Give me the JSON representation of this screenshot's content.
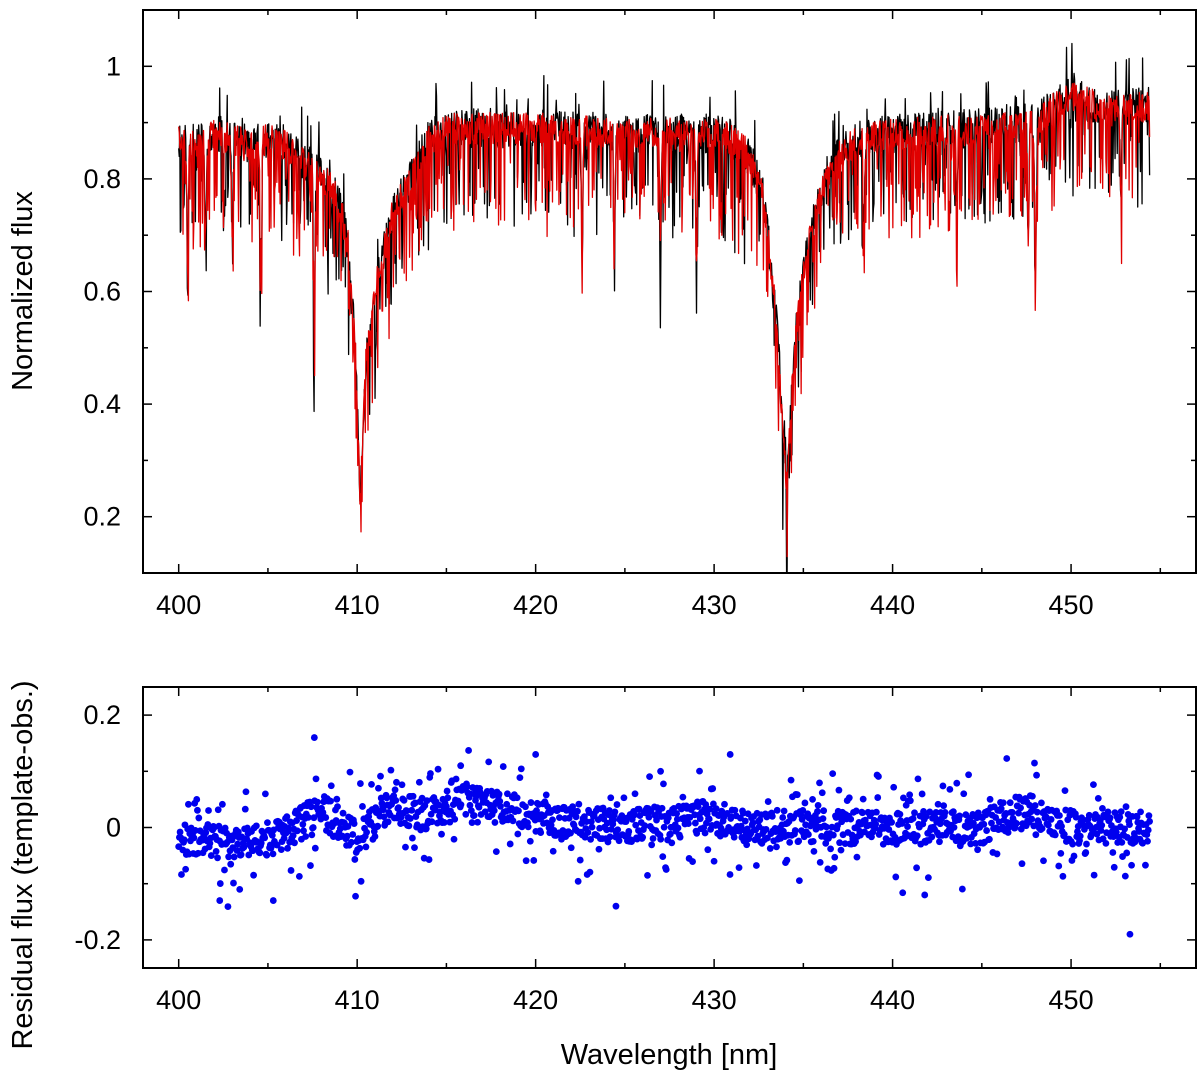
{
  "chart_data": [
    {
      "type": "line",
      "panel": "top",
      "ylabel": "Normalized flux",
      "xlabel": "",
      "xlim": [
        398,
        457
      ],
      "ylim": [
        0.1,
        1.1
      ],
      "x_ticks": [
        "400",
        "410",
        "420",
        "430",
        "440",
        "450"
      ],
      "y_ticks": [
        "0.2",
        "0.4",
        "0.6",
        "0.8",
        "1"
      ],
      "y_tick_values": [
        0.2,
        0.4,
        0.6,
        0.8,
        1.0
      ],
      "grid": false,
      "line_colors": {
        "observed": "#000000",
        "template": "#e00000"
      },
      "x_range": [
        400,
        454.4
      ],
      "continuum_points": [
        [
          400,
          0.87
        ],
        [
          401,
          0.86
        ],
        [
          402,
          0.88
        ],
        [
          403,
          0.87
        ],
        [
          404,
          0.86
        ],
        [
          405,
          0.87
        ],
        [
          406,
          0.86
        ],
        [
          407,
          0.83
        ],
        [
          408,
          0.81
        ],
        [
          409,
          0.76
        ],
        [
          409.5,
          0.68
        ],
        [
          409.9,
          0.5
        ],
        [
          410.17,
          0.23
        ],
        [
          410.5,
          0.48
        ],
        [
          411,
          0.6
        ],
        [
          411.5,
          0.67
        ],
        [
          412,
          0.74
        ],
        [
          413,
          0.8
        ],
        [
          414,
          0.87
        ],
        [
          415,
          0.89
        ],
        [
          418,
          0.89
        ],
        [
          420,
          0.89
        ],
        [
          425,
          0.88
        ],
        [
          430,
          0.88
        ],
        [
          431,
          0.87
        ],
        [
          432,
          0.84
        ],
        [
          432.8,
          0.76
        ],
        [
          433.5,
          0.55
        ],
        [
          434.05,
          0.25
        ],
        [
          434.5,
          0.5
        ],
        [
          435,
          0.64
        ],
        [
          436,
          0.78
        ],
        [
          437,
          0.84
        ],
        [
          438,
          0.87
        ],
        [
          440,
          0.88
        ],
        [
          445,
          0.89
        ],
        [
          448,
          0.9
        ],
        [
          450,
          0.95
        ],
        [
          452,
          0.92
        ],
        [
          454.4,
          0.93
        ]
      ],
      "deep_lines": [
        [
          400.5,
          0.64
        ],
        [
          401.5,
          0.7
        ],
        [
          403,
          0.69
        ],
        [
          404.6,
          0.64
        ],
        [
          407.6,
          0.53
        ],
        [
          422.6,
          0.66
        ],
        [
          424.4,
          0.68
        ],
        [
          427,
          0.68
        ],
        [
          429,
          0.67
        ],
        [
          438.4,
          0.7
        ],
        [
          443.6,
          0.73
        ],
        [
          447.6,
          0.68
        ],
        [
          448,
          0.65
        ],
        [
          452.8,
          0.77
        ]
      ],
      "series": [
        {
          "name": "",
          "color": "#000000",
          "noise": 0.035,
          "seed": 11
        },
        {
          "name": "",
          "color": "#e00000",
          "noise": 0.028,
          "seed": 29
        }
      ]
    },
    {
      "type": "scatter",
      "panel": "bottom",
      "ylabel": "Residual flux (template-obs.)",
      "xlabel": "Wavelength [nm]",
      "xlim": [
        398,
        457
      ],
      "ylim": [
        -0.25,
        0.25
      ],
      "x_ticks": [
        "400",
        "410",
        "420",
        "430",
        "440",
        "450"
      ],
      "y_ticks": [
        "-0.2",
        "0",
        "0.2"
      ],
      "y_tick_values": [
        -0.2,
        0.0,
        0.2
      ],
      "grid": false,
      "marker_color": "#0000ee",
      "x_range": [
        400,
        454.4
      ],
      "baseline_points": [
        [
          400,
          -0.02
        ],
        [
          404,
          -0.03
        ],
        [
          406,
          -0.01
        ],
        [
          408,
          0.03
        ],
        [
          410,
          -0.02
        ],
        [
          412,
          0.04
        ],
        [
          414,
          0.02
        ],
        [
          416,
          0.05
        ],
        [
          420,
          0.02
        ],
        [
          425,
          0.0
        ],
        [
          430,
          0.02
        ],
        [
          432,
          0.0
        ],
        [
          436,
          0.0
        ],
        [
          440,
          0.0
        ],
        [
          445,
          0.0
        ],
        [
          446,
          0.02
        ],
        [
          448,
          0.03
        ],
        [
          450,
          0.0
        ],
        [
          454.4,
          0.0
        ]
      ],
      "notable_points": [
        [
          407.6,
          0.16
        ],
        [
          430.9,
          0.13
        ],
        [
          402.3,
          -0.13
        ],
        [
          405.3,
          -0.13
        ],
        [
          424.5,
          -0.14
        ],
        [
          453.3,
          -0.19
        ],
        [
          415.8,
          0.11
        ],
        [
          420,
          0.13
        ],
        [
          427,
          0.1
        ],
        [
          441.8,
          -0.12
        ]
      ]
    }
  ]
}
